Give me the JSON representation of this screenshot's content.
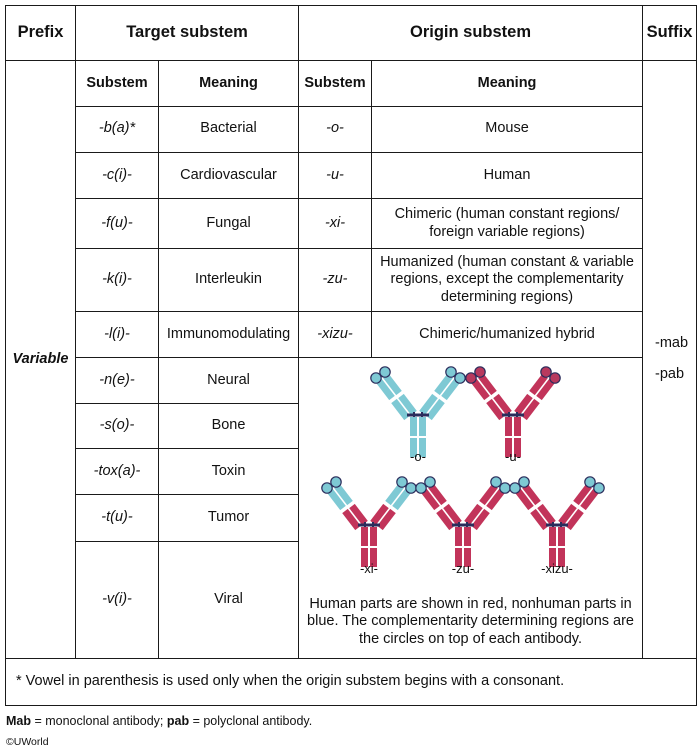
{
  "headers": {
    "prefix": "Prefix",
    "target": "Target substem",
    "origin": "Origin substem",
    "suffix": "Suffix"
  },
  "subheaders": {
    "substem": "Substem",
    "meaning": "Meaning",
    "origin_substem": "Substem",
    "origin_meaning": "Meaning"
  },
  "prefix_value": "Variable",
  "target_rows": [
    {
      "substem": "-b(a)*",
      "meaning": "Bacterial"
    },
    {
      "substem": "-c(i)-",
      "meaning": "Cardiovascular"
    },
    {
      "substem": "-f(u)-",
      "meaning": "Fungal"
    },
    {
      "substem": "-k(i)-",
      "meaning": "Interleukin"
    },
    {
      "substem": "-l(i)-",
      "meaning": "Immunomodulating"
    },
    {
      "substem": "-n(e)-",
      "meaning": "Neural"
    },
    {
      "substem": "-s(o)-",
      "meaning": "Bone"
    },
    {
      "substem": "-tox(a)-",
      "meaning": "Toxin"
    },
    {
      "substem": "-t(u)-",
      "meaning": "Tumor"
    },
    {
      "substem": "-v(i)-",
      "meaning": "Viral"
    }
  ],
  "origin_rows": [
    {
      "substem": "-o-",
      "meaning": "Mouse"
    },
    {
      "substem": "-u-",
      "meaning": "Human"
    },
    {
      "substem": "-xi-",
      "meaning": "Chimeric (human constant regions/ foreign variable regions)"
    },
    {
      "substem": "-zu-",
      "meaning": "Humanized (human constant & variable regions, except the complementarity determining regions)"
    },
    {
      "substem": "-xizu-",
      "meaning": "Chimeric/humanized hybrid"
    }
  ],
  "suffixes": [
    "-mab",
    "-pab"
  ],
  "antibody_labels": [
    "-o-",
    "-u-",
    "-xi-",
    "-zu-",
    "-xizu-"
  ],
  "figure_caption": "Human parts are shown in red, nonhuman parts in blue. The complementarity determining regions are the circles on top of each antibody.",
  "footnote": "* Vowel in parenthesis is used only when the origin substem begins with a consonant.",
  "note": {
    "mab_term": "Mab",
    "mab_def": " = monoclonal antibody; ",
    "pab_term": "pab",
    "pab_def": " = polyclonal antibody."
  },
  "copyright": "©UWorld",
  "colors": {
    "human_red": "#c2345a",
    "nonhuman_blue": "#7ec9d4",
    "hinge_navy": "#2b2d5c",
    "border": "#1a1a1a"
  }
}
